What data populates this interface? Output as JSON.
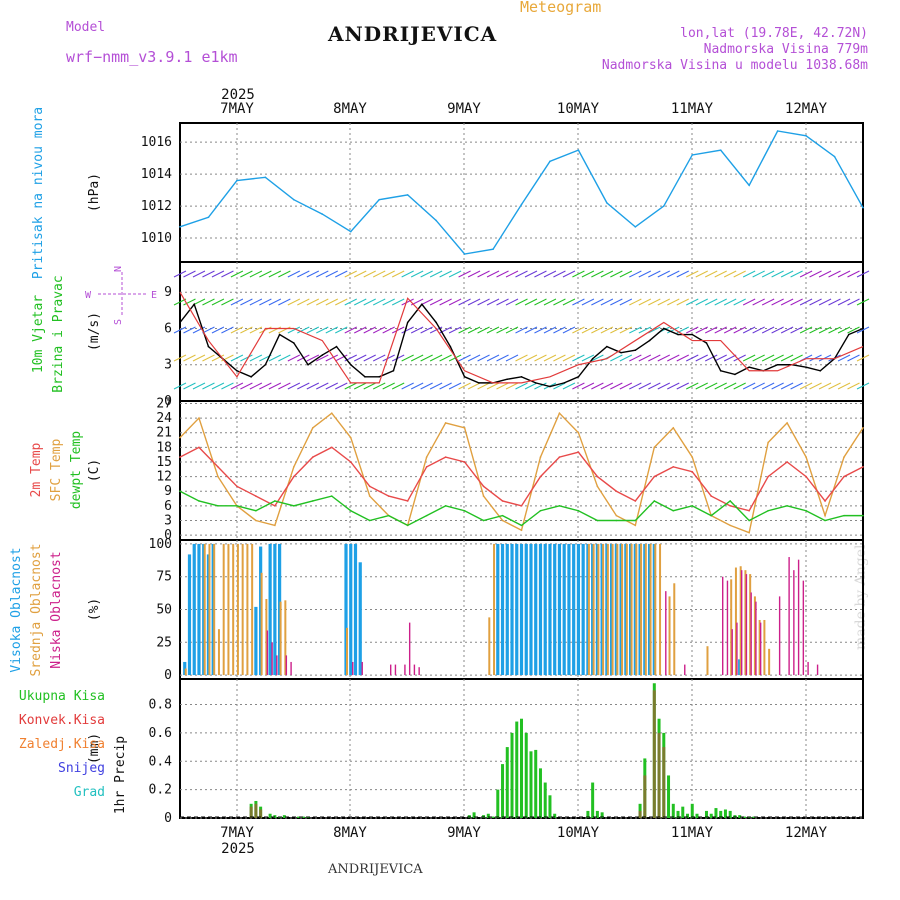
{
  "header": {
    "model_label": "Model",
    "model_name": "wrf−nmm_v3.9.1 e1km",
    "title": "ANDRIJEVICA",
    "subtitle": "Meteogram",
    "lonlat": "lon,lat (19.78E, 42.72N)",
    "altitude": "Nadmorska Visina 779m",
    "model_altitude": "Nadmorska Visina u modelu 1038.68m"
  },
  "footer": {
    "station": "ANDRIJEVICA",
    "watermark": "made by Angel"
  },
  "colors": {
    "pressure": "#1ea0e6",
    "wind_speed": "#000000",
    "gust": "#e23b3b",
    "t2m": "#e84a4a",
    "sfc": "#e0a040",
    "dewp": "#22c022",
    "high_cloud": "#1ea0e6",
    "mid_cloud": "#e0a040",
    "low_cloud": "#cc1f8a",
    "total_rain": "#22c022",
    "conv_rain": "#e23b3b",
    "frz_rain": "#f08030",
    "snow": "#4040e0",
    "hail": "#22c0c0"
  },
  "chart_data": [
    {
      "type": "line",
      "title": "",
      "ylabel_side": "Pritisak na nivou mora",
      "ylabel": "(hPa)",
      "top_year": "2025",
      "day_labels": [
        "7MAY",
        "8MAY",
        "9MAY",
        "10MAY",
        "11MAY",
        "12MAY"
      ],
      "yticks": [
        1010,
        1012,
        1014,
        1016
      ],
      "ylim": [
        1008.5,
        1017.2
      ],
      "x_hours": [
        0,
        12,
        24,
        36,
        48,
        60,
        72,
        84,
        96,
        108,
        120,
        132,
        144
      ],
      "series": [
        {
          "name": "Pritisak na nivou mora",
          "x": [
            0,
            6,
            12,
            18,
            24,
            30,
            36,
            42,
            48,
            54,
            60,
            66,
            72,
            78,
            84,
            90,
            96,
            102,
            108,
            114,
            120,
            126,
            132,
            138,
            144
          ],
          "values": [
            1010.7,
            1011.3,
            1013.6,
            1013.8,
            1012.4,
            1011.5,
            1010.4,
            1012.4,
            1012.7,
            1011.1,
            1009.0,
            1009.3,
            1012.1,
            1014.8,
            1015.5,
            1012.2,
            1010.7,
            1012.0,
            1015.2,
            1015.5,
            1013.3,
            1016.7,
            1016.4,
            1015.1,
            1011.9
          ]
        }
      ],
      "grid": true
    },
    {
      "type": "line",
      "ylabel_side": "10m Vjetar",
      "ylabel_side2": "Brzina i Pravac",
      "ylabel": "(m/s)",
      "compass": {
        "n": "N",
        "s": "S",
        "w": "W",
        "e": "E"
      },
      "yticks": [
        0,
        3,
        6,
        9
      ],
      "ylim": [
        0,
        11.5
      ],
      "series": [
        {
          "name": "10m Vjetar Brzina",
          "x": [
            0,
            3,
            6,
            9,
            12,
            15,
            18,
            21,
            24,
            27,
            30,
            33,
            36,
            39,
            42,
            45,
            48,
            51,
            54,
            57,
            60,
            63,
            66,
            69,
            72,
            75,
            78,
            81,
            84,
            87,
            90,
            93,
            96,
            99,
            102,
            105,
            108,
            111,
            114,
            117,
            120,
            123,
            126,
            129,
            132,
            135,
            138,
            141,
            144
          ],
          "values": [
            6.5,
            8.0,
            4.5,
            3.5,
            2.5,
            2.0,
            3.0,
            5.5,
            4.8,
            3.0,
            3.8,
            4.5,
            3.0,
            2.0,
            2.0,
            2.5,
            6.5,
            8.0,
            6.5,
            4.5,
            2.0,
            1.5,
            1.5,
            1.8,
            2.0,
            1.5,
            1.2,
            1.5,
            2.0,
            3.5,
            4.5,
            4.0,
            4.2,
            5.0,
            6.0,
            5.5,
            5.5,
            4.8,
            2.5,
            2.2,
            2.8,
            2.5,
            3.0,
            3.0,
            2.8,
            2.5,
            3.5,
            5.5,
            6.0
          ]
        },
        {
          "name": "Udar",
          "x": [
            0,
            6,
            12,
            18,
            24,
            30,
            36,
            42,
            48,
            54,
            60,
            66,
            72,
            78,
            84,
            90,
            96,
            102,
            108,
            114,
            120,
            126,
            132,
            138,
            144
          ],
          "values": [
            9,
            5,
            2,
            6,
            6,
            5,
            1.5,
            1.5,
            8.5,
            6,
            2.5,
            1.5,
            1.5,
            2,
            3,
            3.5,
            5,
            6.5,
            5,
            5,
            2.5,
            2.5,
            3.5,
            3.5,
            4.5
          ]
        }
      ]
    },
    {
      "type": "line",
      "ylabel_side": "2m Temp",
      "ylabel_side2": "SFC Temp",
      "ylabel_side3": "dewpt Temp",
      "ylabel": "(C)",
      "yticks": [
        0,
        3,
        6,
        9,
        12,
        15,
        18,
        21,
        24,
        27
      ],
      "ylim": [
        -1,
        27.5
      ],
      "series": [
        {
          "name": "2m Temp",
          "x": [
            0,
            4,
            8,
            12,
            16,
            20,
            24,
            28,
            32,
            36,
            40,
            44,
            48,
            52,
            56,
            60,
            64,
            68,
            72,
            76,
            80,
            84,
            88,
            92,
            96,
            100,
            104,
            108,
            112,
            116,
            120,
            124,
            128,
            132,
            136,
            140,
            144
          ],
          "values": [
            16,
            18,
            14,
            10,
            8,
            6,
            12,
            16,
            18,
            15,
            10,
            8,
            7,
            14,
            16,
            15,
            10,
            7,
            6,
            12,
            16,
            17,
            12,
            9,
            7,
            12,
            14,
            13,
            8,
            6,
            5,
            12,
            15,
            12,
            7,
            12,
            14
          ]
        },
        {
          "name": "SFC Temp",
          "x": [
            0,
            4,
            8,
            12,
            16,
            20,
            24,
            28,
            32,
            36,
            40,
            44,
            48,
            52,
            56,
            60,
            64,
            68,
            72,
            76,
            80,
            84,
            88,
            92,
            96,
            100,
            104,
            108,
            112,
            116,
            120,
            124,
            128,
            132,
            136,
            140,
            144
          ],
          "values": [
            20,
            24,
            12,
            6,
            3,
            2,
            14,
            22,
            25,
            20,
            8,
            4,
            2,
            16,
            23,
            22,
            8,
            3,
            1,
            16,
            25,
            21,
            10,
            4,
            2,
            18,
            22,
            16,
            4,
            2,
            0.5,
            19,
            23,
            16,
            4,
            16,
            22
          ]
        },
        {
          "name": "dewpt Temp",
          "x": [
            0,
            4,
            8,
            12,
            16,
            20,
            24,
            28,
            32,
            36,
            40,
            44,
            48,
            52,
            56,
            60,
            64,
            68,
            72,
            76,
            80,
            84,
            88,
            92,
            96,
            100,
            104,
            108,
            112,
            116,
            120,
            124,
            128,
            132,
            136,
            140,
            144
          ],
          "values": [
            9,
            7,
            6,
            6,
            5,
            7,
            6,
            7,
            8,
            5,
            3,
            4,
            2,
            4,
            6,
            5,
            3,
            4,
            2,
            5,
            6,
            5,
            3,
            3,
            3,
            7,
            5,
            6,
            4,
            7,
            3,
            5,
            6,
            5,
            3,
            4,
            4
          ]
        }
      ]
    },
    {
      "type": "bar",
      "ylabel_side": "Visoka Oblacnost",
      "ylabel_side2": "Srednja Oblacnost",
      "ylabel_side3": "Niska Oblacnost",
      "ylabel": "(%)",
      "yticks": [
        0,
        25,
        50,
        75,
        100
      ],
      "ylim": [
        -3,
        103
      ],
      "series": [
        {
          "name": "Visoka Oblacnost",
          "x": [
            1,
            2,
            3,
            4,
            5,
            6,
            7,
            16,
            17,
            19,
            20,
            21,
            35,
            36,
            37,
            38,
            67,
            68,
            69,
            70,
            71,
            72,
            73,
            74,
            75,
            76,
            77,
            78,
            79,
            80,
            81,
            82,
            83,
            84,
            85,
            86,
            87,
            88,
            89,
            90,
            91,
            92,
            93,
            94,
            95,
            96,
            97,
            98,
            99,
            100,
            118
          ],
          "values": [
            10,
            92,
            100,
            100,
            100,
            92,
            100,
            52,
            98,
            100,
            100,
            100,
            100,
            100,
            100,
            86,
            100,
            100,
            100,
            100,
            100,
            100,
            100,
            100,
            100,
            100,
            100,
            100,
            100,
            100,
            100,
            100,
            100,
            100,
            100,
            100,
            100,
            100,
            100,
            100,
            100,
            100,
            100,
            100,
            100,
            100,
            100,
            100,
            100,
            100,
            12
          ]
        },
        {
          "name": "Srednja Oblacnost",
          "x": [
            1,
            5,
            6,
            7,
            8,
            9,
            10,
            11,
            12,
            13,
            14,
            15,
            17,
            18,
            21,
            22,
            35,
            65,
            66,
            86,
            87,
            88,
            89,
            90,
            91,
            92,
            93,
            94,
            95,
            96,
            97,
            98,
            99,
            100,
            101,
            103,
            104,
            111,
            116,
            117,
            118,
            119,
            120,
            121,
            122,
            123,
            124
          ],
          "values": [
            5,
            100,
            100,
            100,
            35,
            100,
            100,
            100,
            100,
            100,
            100,
            100,
            78,
            58,
            56,
            57,
            36,
            44,
            100,
            100,
            100,
            100,
            100,
            100,
            100,
            100,
            100,
            100,
            100,
            100,
            100,
            100,
            100,
            100,
            100,
            60,
            70,
            22,
            73,
            82,
            83,
            80,
            77,
            60,
            42,
            42,
            20
          ]
        },
        {
          "name": "Niska Oblacnost",
          "x": [
            18,
            19,
            20,
            22,
            23,
            36,
            38,
            44,
            45,
            47,
            48,
            49,
            50,
            102,
            106,
            114,
            115,
            116,
            117,
            118,
            119,
            120,
            121,
            122,
            126,
            128,
            129,
            130,
            131,
            132,
            134
          ],
          "values": [
            34,
            25,
            15,
            15,
            10,
            10,
            10,
            8,
            8,
            8,
            40,
            8,
            6,
            64,
            8,
            75,
            72,
            35,
            40,
            80,
            77,
            63,
            56,
            40,
            60,
            90,
            80,
            88,
            72,
            10,
            8
          ]
        }
      ]
    },
    {
      "type": "bar",
      "ylabel_side": "1hr Precip",
      "ylabel": "(mm)",
      "legend": [
        "Ukupna Kisa",
        "Konvek.Kisa",
        "Zaledj.Kisa",
        "Snijeg",
        "Grad"
      ],
      "yticks": [
        0,
        0.2,
        0.4,
        0.6,
        0.8
      ],
      "ylim": [
        0,
        0.98
      ],
      "bottom_year": "2025",
      "series": [
        {
          "name": "Ukupna Kisa",
          "x": [
            15,
            16,
            17,
            19,
            20,
            21,
            22,
            25,
            26,
            27,
            61,
            62,
            64,
            65,
            66,
            67,
            68,
            69,
            70,
            71,
            72,
            73,
            74,
            75,
            76,
            77,
            78,
            79,
            86,
            87,
            88,
            89,
            97,
            98,
            100,
            101,
            102,
            103,
            104,
            105,
            106,
            107,
            108,
            109,
            111,
            112,
            113,
            114,
            115,
            116,
            117,
            118,
            119,
            120,
            121
          ],
          "values": [
            0.1,
            0.12,
            0.08,
            0.03,
            0.02,
            0.01,
            0.02,
            0.01,
            0.01,
            0.01,
            0.02,
            0.04,
            0.02,
            0.03,
            0.01,
            0.2,
            0.38,
            0.5,
            0.6,
            0.68,
            0.7,
            0.6,
            0.47,
            0.48,
            0.35,
            0.25,
            0.16,
            0.03,
            0.05,
            0.25,
            0.05,
            0.04,
            0.1,
            0.42,
            0.95,
            0.7,
            0.6,
            0.3,
            0.1,
            0.05,
            0.08,
            0.03,
            0.1,
            0.03,
            0.05,
            0.03,
            0.07,
            0.05,
            0.06,
            0.05,
            0.02,
            0.02,
            0.01,
            0.01,
            0.01
          ]
        },
        {
          "name": "Konvek.Kisa",
          "x": [
            15,
            16,
            17,
            97,
            98,
            100,
            101,
            102
          ],
          "values": [
            0.08,
            0.1,
            0.06,
            0.05,
            0.3,
            0.9,
            0.6,
            0.5
          ]
        }
      ]
    }
  ]
}
